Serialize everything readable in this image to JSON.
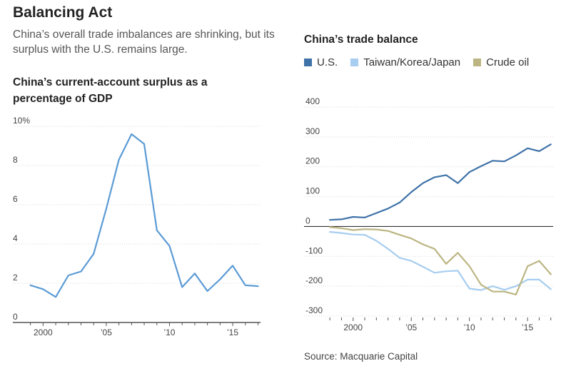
{
  "page": {
    "headline": "Balancing Act",
    "subhead": "China’s overall trade imbalances are shrinking, but its surplus with the U.S. remains large.",
    "source": "Source: Macquarie Capital"
  },
  "chart_data": [
    {
      "type": "line",
      "title": "China’s current-account surplus as a percentage of GDP",
      "xlabel": "",
      "ylabel": "",
      "ylim": [
        0,
        10
      ],
      "xlim": [
        1998.4,
        2017.2
      ],
      "y_ticks": [
        0,
        2,
        4,
        6,
        8,
        10
      ],
      "y_tick_labels": [
        "0",
        "2",
        "4",
        "6",
        "8",
        "10%"
      ],
      "x_ticks": [
        2000,
        2005,
        2010,
        2015
      ],
      "x_tick_labels": [
        "2000",
        "’05",
        "’10",
        "’15"
      ],
      "grid": true,
      "legend": "none",
      "series": [
        {
          "color": "#5b9bd5",
          "x": [
            1999,
            2000,
            2001,
            2002,
            2003,
            2004,
            2005,
            2006,
            2007,
            2008,
            2009,
            2010,
            2011,
            2012,
            2013,
            2014,
            2015,
            2016,
            2017
          ],
          "y": [
            1.9,
            1.7,
            1.3,
            2.4,
            2.6,
            3.5,
            5.8,
            8.3,
            9.6,
            9.1,
            4.7,
            3.9,
            1.8,
            2.5,
            1.6,
            2.2,
            2.9,
            1.9,
            1.85
          ]
        }
      ]
    },
    {
      "type": "line",
      "title": "China’s trade balance",
      "xlabel": "",
      "ylabel": "",
      "ylim": [
        -300,
        400
      ],
      "xlim": [
        1997.5,
        2017.2
      ],
      "y_ticks": [
        -300,
        -200,
        -100,
        0,
        100,
        200,
        300,
        400
      ],
      "y_tick_labels": [
        "-300",
        "-200",
        "-100",
        "0",
        "100",
        "200",
        "300",
        "400"
      ],
      "x_ticks": [
        2000,
        2005,
        2010,
        2015
      ],
      "x_tick_labels": [
        "2000",
        "’05",
        "’10",
        "’15"
      ],
      "grid": true,
      "legend": "top",
      "series": [
        {
          "name": "U.S.",
          "color": "#3f72a8",
          "x": [
            1998,
            1999,
            2000,
            2001,
            2002,
            2003,
            2004,
            2005,
            2006,
            2007,
            2008,
            2009,
            2010,
            2011,
            2012,
            2013,
            2014,
            2015,
            2016,
            2017
          ],
          "y": [
            22,
            24,
            32,
            30,
            45,
            60,
            80,
            115,
            145,
            165,
            172,
            145,
            182,
            202,
            220,
            218,
            238,
            262,
            252,
            275
          ]
        },
        {
          "name": "Taiwan/Korea/Japan",
          "color": "#a7cdf0",
          "x": [
            1998,
            1999,
            2000,
            2001,
            2002,
            2003,
            2004,
            2005,
            2006,
            2007,
            2008,
            2009,
            2010,
            2011,
            2012,
            2013,
            2014,
            2015,
            2016,
            2017
          ],
          "y": [
            -18,
            -22,
            -27,
            -28,
            -48,
            -75,
            -105,
            -115,
            -135,
            -155,
            -150,
            -148,
            -208,
            -213,
            -200,
            -212,
            -200,
            -178,
            -178,
            -210
          ]
        },
        {
          "name": "Crude oil",
          "color": "#bcb582",
          "x": [
            1998,
            1999,
            2000,
            2001,
            2002,
            2003,
            2004,
            2005,
            2006,
            2007,
            2008,
            2009,
            2010,
            2011,
            2012,
            2013,
            2014,
            2015,
            2016,
            2017
          ],
          "y": [
            -2,
            -6,
            -12,
            -9,
            -10,
            -15,
            -28,
            -40,
            -60,
            -75,
            -125,
            -88,
            -133,
            -195,
            -218,
            -218,
            -228,
            -133,
            -115,
            -160
          ]
        }
      ]
    }
  ]
}
